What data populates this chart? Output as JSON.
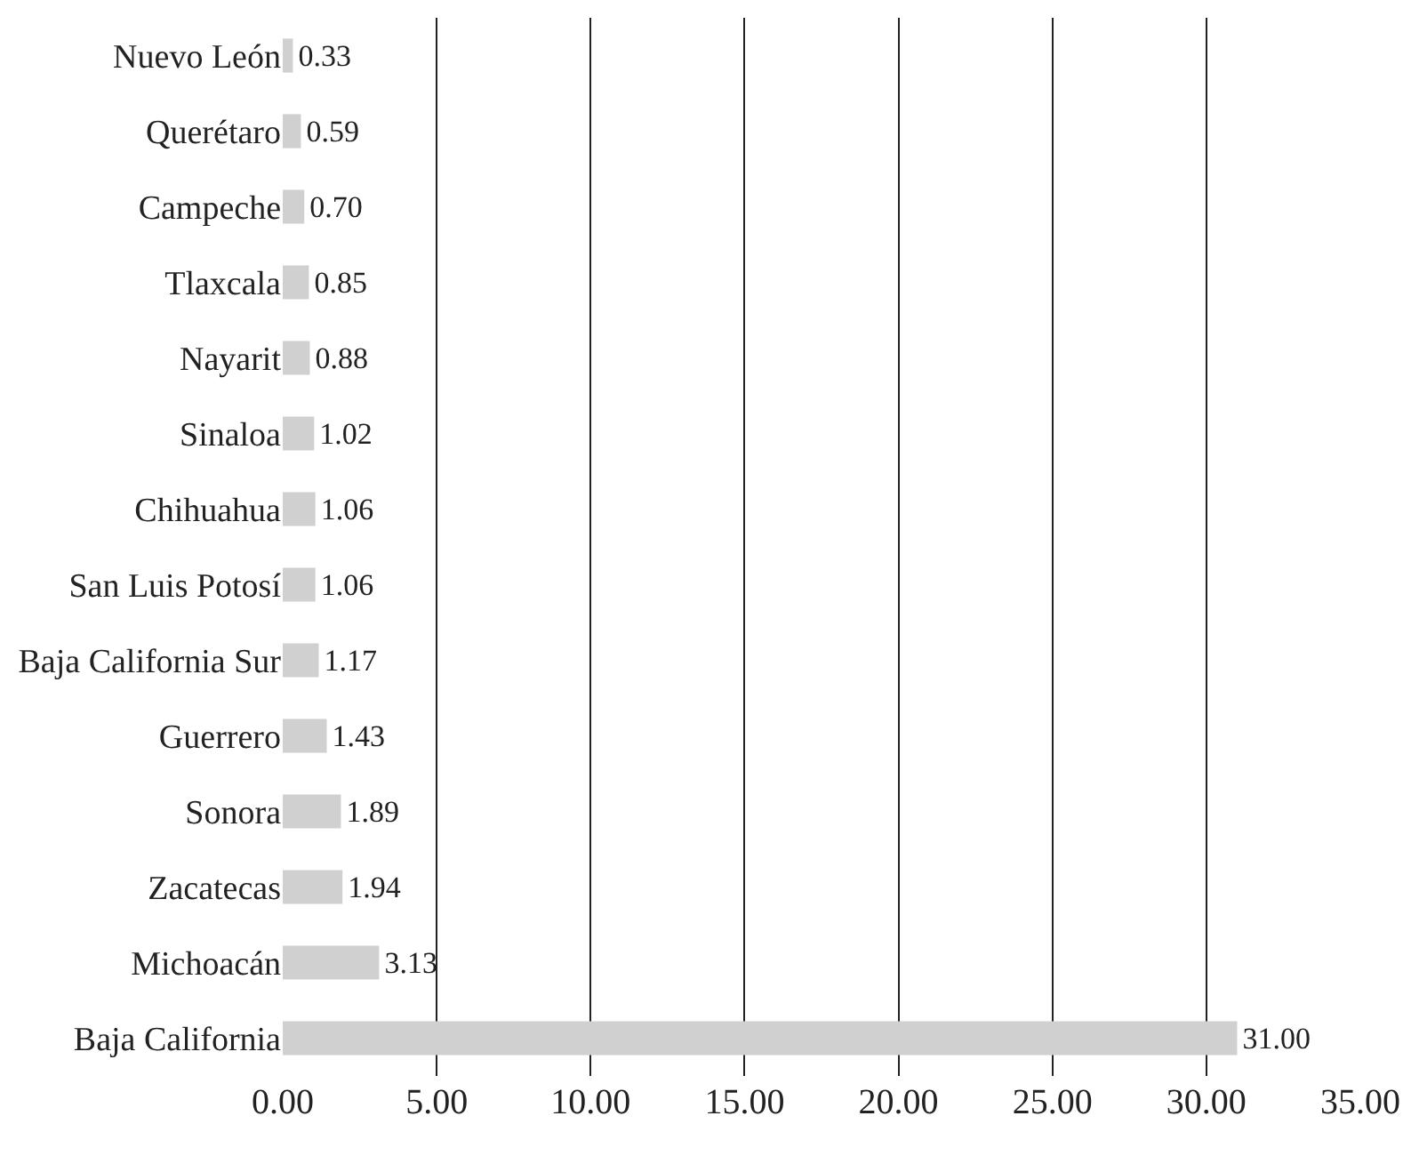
{
  "chart_data": {
    "type": "bar",
    "orientation": "horizontal",
    "categories": [
      "Nuevo León",
      "Querétaro",
      "Campeche",
      "Tlaxcala",
      "Nayarit",
      "Sinaloa",
      "Chihuahua",
      "San Luis Potosí",
      "Baja California Sur",
      "Guerrero",
      "Sonora",
      "Zacatecas",
      "Michoacán",
      "Baja California"
    ],
    "values": [
      0.33,
      0.59,
      0.7,
      0.85,
      0.88,
      1.02,
      1.06,
      1.06,
      1.17,
      1.43,
      1.89,
      1.94,
      3.13,
      31.0
    ],
    "value_labels": [
      "0.33",
      "0.59",
      "0.70",
      "0.85",
      "0.88",
      "1.02",
      "1.06",
      "1.06",
      "1.17",
      "1.43",
      "1.89",
      "1.94",
      "3.13",
      "31.00"
    ],
    "color": "#d0d0d0",
    "xlim": [
      0,
      35
    ],
    "xticks": [
      {
        "value": 0,
        "label": "0.00"
      },
      {
        "value": 5,
        "label": "5.00"
      },
      {
        "value": 10,
        "label": "10.00"
      },
      {
        "value": 15,
        "label": "15.00"
      },
      {
        "value": 20,
        "label": "20.00"
      },
      {
        "value": 25,
        "label": "25.00"
      },
      {
        "value": 30,
        "label": "30.00"
      },
      {
        "value": 35,
        "label": "35.00"
      }
    ],
    "grid": "x"
  }
}
